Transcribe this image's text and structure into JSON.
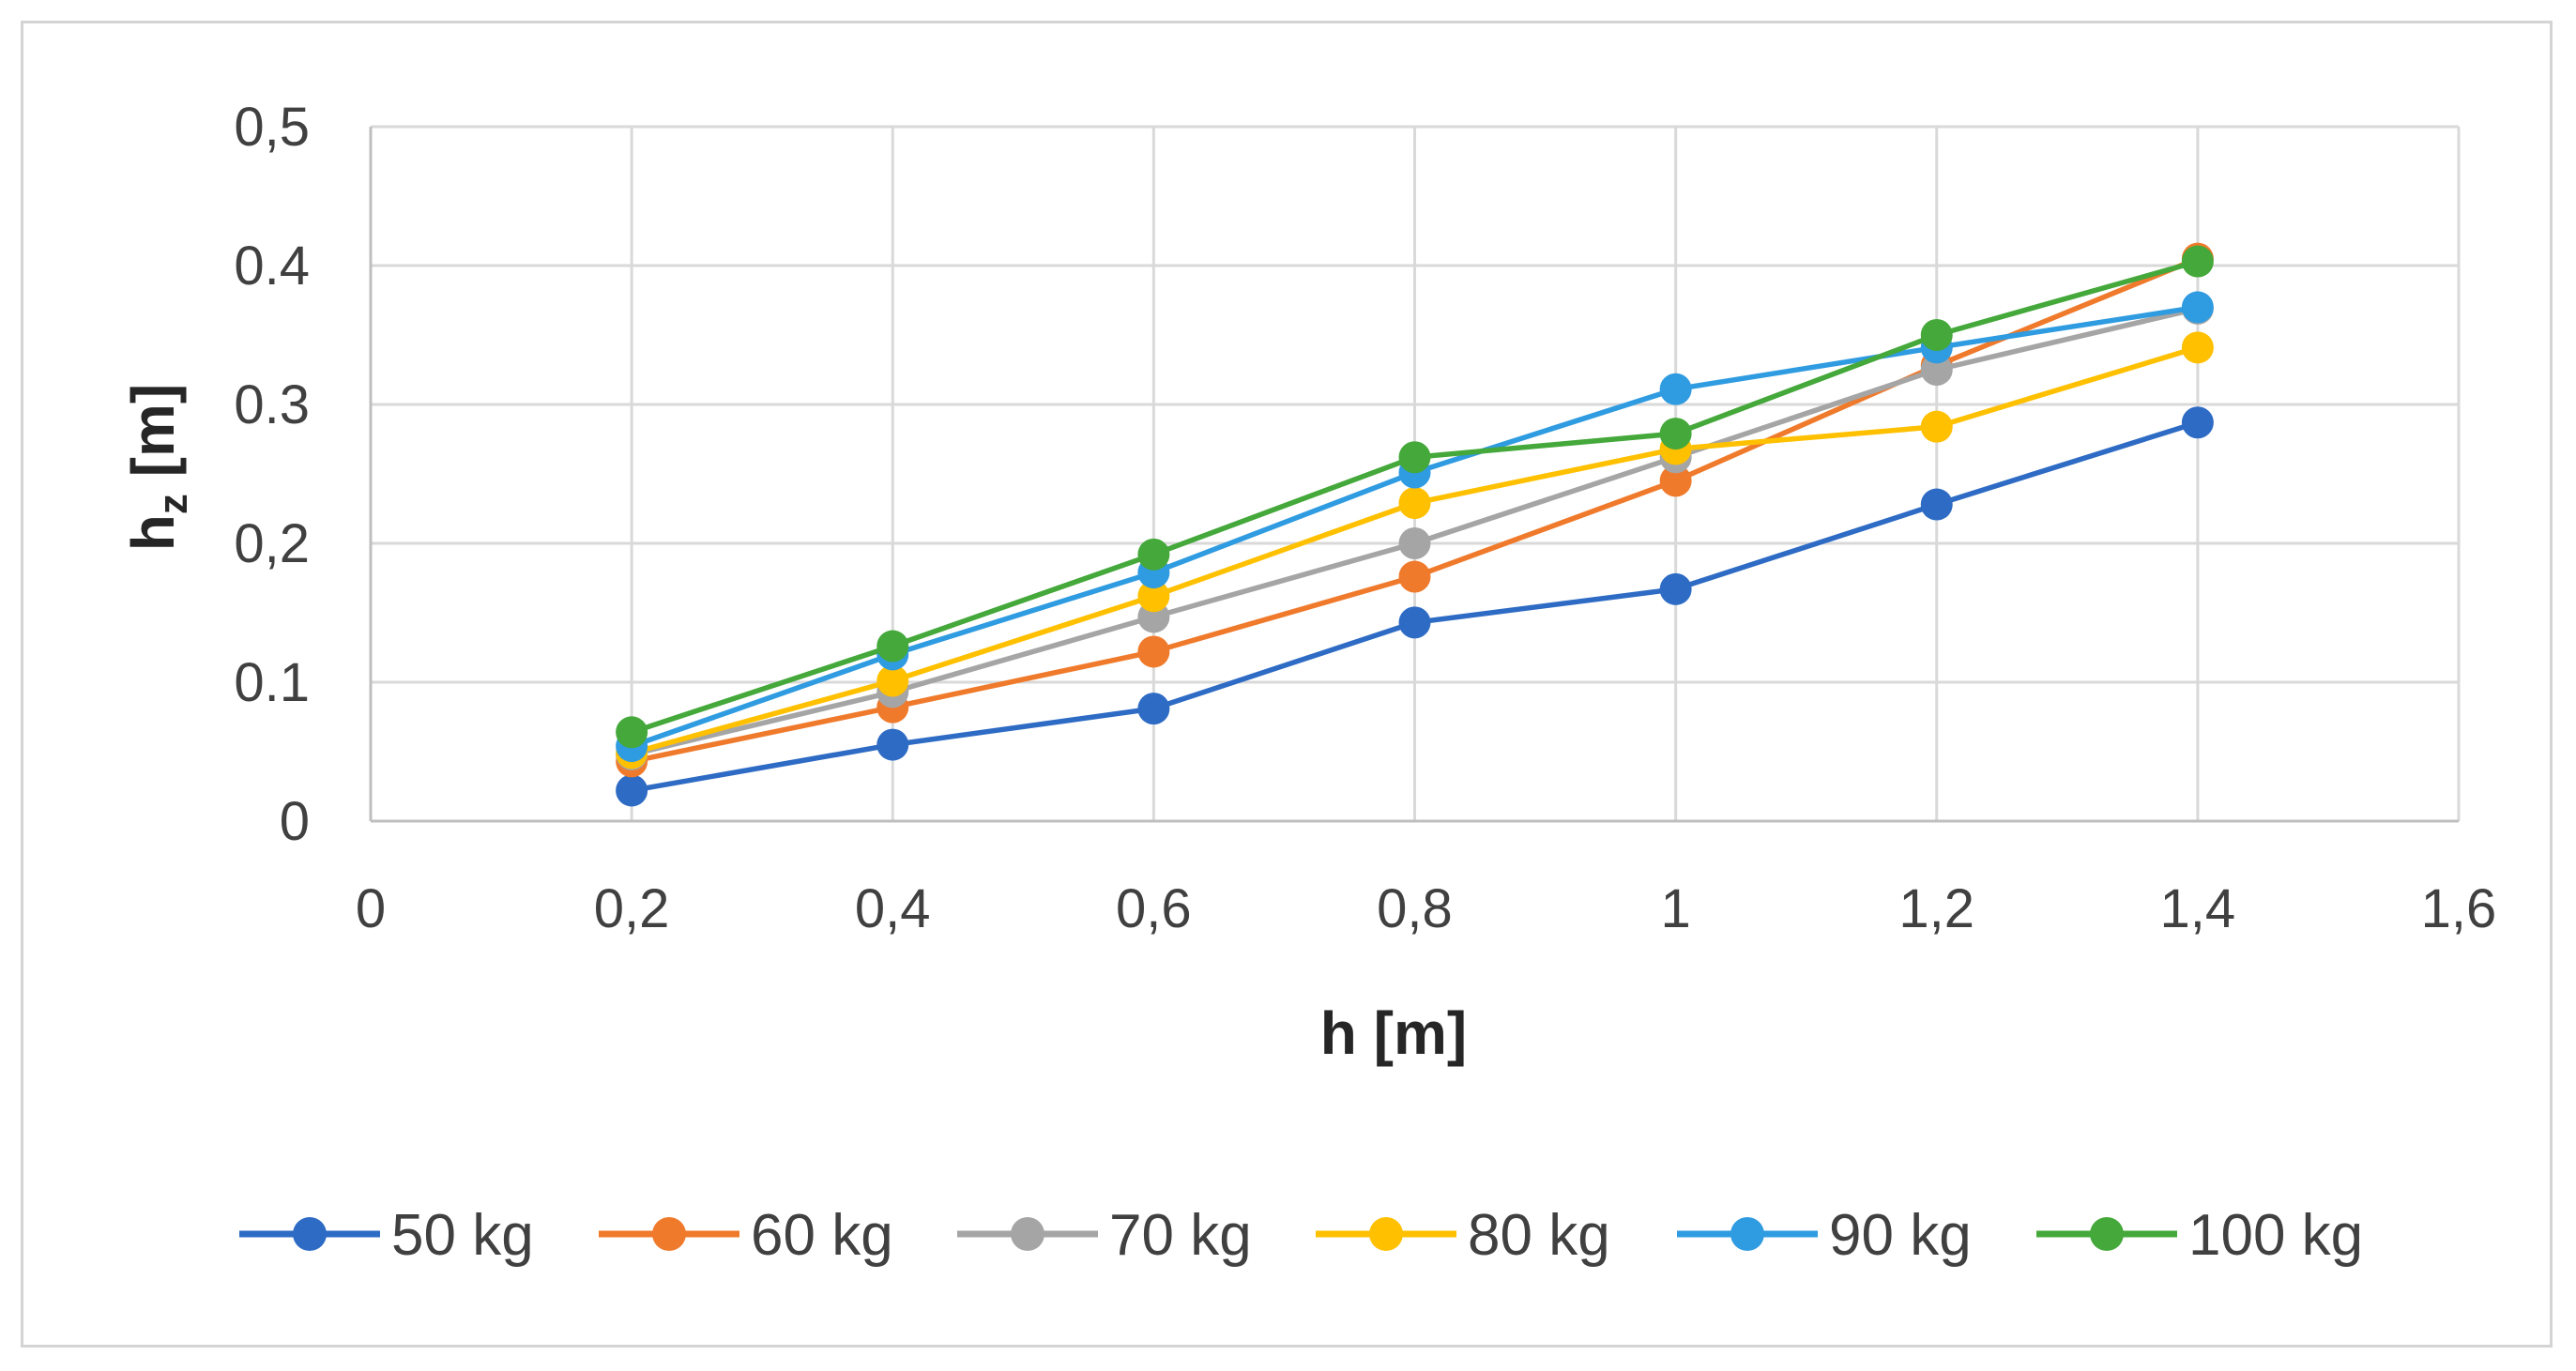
{
  "chart_data": {
    "type": "line",
    "title": "",
    "xlabel": "h [m]",
    "ylabel_main": "h",
    "ylabel_sub": "z",
    "ylabel_unit": " [m]",
    "xlim": [
      0,
      1.6
    ],
    "ylim": [
      0,
      0.5
    ],
    "x_ticks": [
      0,
      0.2,
      0.4,
      0.6,
      0.8,
      1,
      1.2,
      1.4,
      1.6
    ],
    "x_tick_labels": [
      "0",
      "0,2",
      "0,4",
      "0,6",
      "0,8",
      "1",
      "1,2",
      "1,4",
      "1,6"
    ],
    "y_ticks": [
      0,
      0.1,
      0.2,
      0.3,
      0.4,
      0.5
    ],
    "y_tick_labels": [
      "0",
      "0.1",
      "0,2",
      "0.3",
      "0.4",
      "0,5"
    ],
    "grid": true,
    "legend_position": "bottom",
    "x": [
      0.2,
      0.4,
      0.6,
      0.8,
      1.0,
      1.2,
      1.4
    ],
    "series": [
      {
        "name": "50 kg",
        "color": "#2e6bc4",
        "values": [
          0.022,
          0.055,
          0.081,
          0.143,
          0.167,
          0.228,
          0.287
        ]
      },
      {
        "name": "60 kg",
        "color": "#f07a2b",
        "values": [
          0.043,
          0.082,
          0.122,
          0.176,
          0.245,
          0.328,
          0.405
        ]
      },
      {
        "name": "70 kg",
        "color": "#a5a5a5",
        "values": [
          0.048,
          0.093,
          0.147,
          0.2,
          0.262,
          0.325,
          0.369
        ]
      },
      {
        "name": "80 kg",
        "color": "#ffc000",
        "values": [
          0.049,
          0.101,
          0.162,
          0.229,
          0.268,
          0.284,
          0.341
        ]
      },
      {
        "name": "90 kg",
        "color": "#2f9be0",
        "values": [
          0.054,
          0.12,
          0.179,
          0.251,
          0.311,
          0.341,
          0.37
        ]
      },
      {
        "name": "100 kg",
        "color": "#44a83a",
        "values": [
          0.064,
          0.126,
          0.192,
          0.262,
          0.279,
          0.35,
          0.403
        ]
      }
    ]
  }
}
